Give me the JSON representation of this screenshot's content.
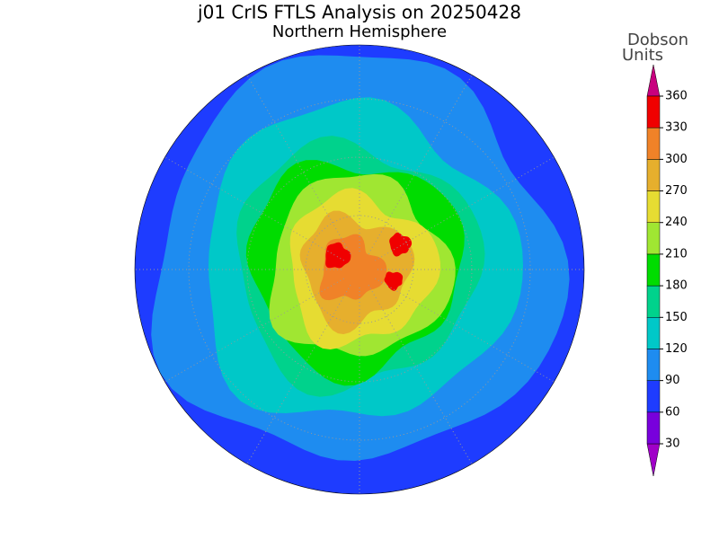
{
  "header": {
    "title": "j01 CrIS FTLS Analysis on 20250428",
    "subtitle": "Northern Hemisphere"
  },
  "colorbar": {
    "label": [
      "Dobson",
      "Units"
    ],
    "ticks": [
      30,
      60,
      90,
      120,
      150,
      180,
      210,
      240,
      270,
      300,
      330,
      360
    ],
    "colors": [
      "#a000c8",
      "#7800dc",
      "#1e3cff",
      "#1e8cf0",
      "#00c8c8",
      "#00d28c",
      "#00dc00",
      "#a0e632",
      "#e6dc32",
      "#e6af2d",
      "#f08228",
      "#f00000",
      "#c8007f"
    ]
  }
}
